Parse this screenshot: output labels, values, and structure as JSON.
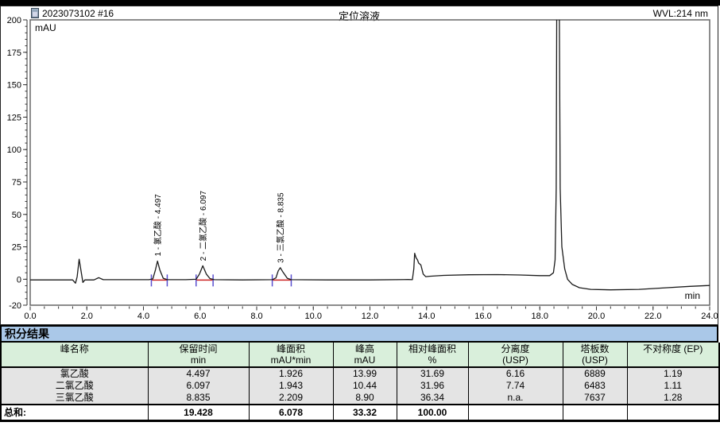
{
  "chart_header": {
    "sample": "2023073102 #16",
    "title": "定位溶液",
    "wavelength": "WVL:214 nm"
  },
  "chart_data": {
    "type": "line",
    "title": "定位溶液",
    "xlabel": "min",
    "ylabel": "mAU",
    "xlim": [
      0,
      24
    ],
    "ylim": [
      -20,
      200
    ],
    "x_major_step": 2,
    "x_minor_step": 0.5,
    "y_major_labels": [
      -20,
      0,
      25,
      50,
      75,
      100,
      125,
      150,
      175,
      200
    ],
    "y_minor_step": 5,
    "grid": false,
    "peaks": [
      {
        "number": 1,
        "name": "氯乙酸",
        "retention_min": 4.497,
        "label": "1 - 氯乙酸 - 4.497",
        "start": 4.28,
        "end": 4.84,
        "height_mAU": 13.99
      },
      {
        "number": 2,
        "name": "二氯乙酸",
        "retention_min": 6.097,
        "label": "2 - 二氯乙酸 - 6.097",
        "start": 5.86,
        "end": 6.46,
        "height_mAU": 10.44
      },
      {
        "number": 3,
        "name": "三氯乙酸",
        "retention_min": 8.835,
        "label": "3 - 三氯乙酸 - 8.835",
        "start": 8.55,
        "end": 9.22,
        "height_mAU": 8.9
      }
    ],
    "unlabeled_features": [
      {
        "retention_min": 1.75,
        "height_mAU": 15.5
      },
      {
        "retention_min": 13.58,
        "height_mAU": 20
      },
      {
        "retention_min": 18.64,
        "height_mAU": 300,
        "note": "clipped at top of scale"
      }
    ],
    "curve": [
      [
        0,
        -0.5
      ],
      [
        1.5,
        -0.5
      ],
      [
        1.6,
        -3
      ],
      [
        1.66,
        2
      ],
      [
        1.73,
        15.5
      ],
      [
        1.8,
        6
      ],
      [
        1.86,
        -2.5
      ],
      [
        1.93,
        -0.5
      ],
      [
        2.25,
        -0.5
      ],
      [
        2.42,
        1.2
      ],
      [
        2.58,
        -0.3
      ],
      [
        3.0,
        -0.3
      ],
      [
        4.2,
        -0.3
      ],
      [
        4.33,
        0.3
      ],
      [
        4.42,
        7
      ],
      [
        4.497,
        14
      ],
      [
        4.58,
        7
      ],
      [
        4.7,
        0.8
      ],
      [
        4.84,
        -0.3
      ],
      [
        5.5,
        -0.3
      ],
      [
        5.86,
        0
      ],
      [
        5.98,
        4
      ],
      [
        6.097,
        10.4
      ],
      [
        6.22,
        4
      ],
      [
        6.35,
        0.5
      ],
      [
        6.5,
        -0.3
      ],
      [
        7.5,
        -0.5
      ],
      [
        8.55,
        -0.3
      ],
      [
        8.68,
        1
      ],
      [
        8.76,
        6.5
      ],
      [
        8.835,
        8.9
      ],
      [
        8.93,
        5.5
      ],
      [
        9.08,
        0.8
      ],
      [
        9.22,
        -0.3
      ],
      [
        10.5,
        -0.5
      ],
      [
        12,
        -0.5
      ],
      [
        13.35,
        -0.2
      ],
      [
        13.5,
        -0.3
      ],
      [
        13.55,
        8
      ],
      [
        13.58,
        20
      ],
      [
        13.63,
        16.5
      ],
      [
        13.68,
        15
      ],
      [
        13.72,
        12.5
      ],
      [
        13.8,
        11
      ],
      [
        13.88,
        4
      ],
      [
        13.97,
        2
      ],
      [
        14.1,
        2.3
      ],
      [
        14.6,
        3
      ],
      [
        15.5,
        3.5
      ],
      [
        16.5,
        3.6
      ],
      [
        17.3,
        3.3
      ],
      [
        18.0,
        2.8
      ],
      [
        18.35,
        2.8
      ],
      [
        18.48,
        5
      ],
      [
        18.54,
        15
      ],
      [
        18.58,
        70
      ],
      [
        18.61,
        300
      ],
      [
        18.67,
        300
      ],
      [
        18.72,
        70
      ],
      [
        18.78,
        25
      ],
      [
        18.88,
        8
      ],
      [
        18.98,
        0
      ],
      [
        19.15,
        -4
      ],
      [
        19.4,
        -6.5
      ],
      [
        19.8,
        -7.8
      ],
      [
        20.5,
        -8.2
      ],
      [
        21.5,
        -7.8
      ],
      [
        22.5,
        -6.5
      ],
      [
        23.3,
        -5.5
      ],
      [
        24,
        -4.8
      ]
    ],
    "colors": {
      "trace": "#1a1a1a",
      "baseline_marker": "#cc2222",
      "peak_marker": "#5a4fcf",
      "plot_border": "#666666",
      "axis": "#333333"
    }
  },
  "results_table": {
    "title": "积分结果",
    "columns": [
      {
        "label": "峰名称",
        "unit": ""
      },
      {
        "label": "保留时间",
        "unit": "min"
      },
      {
        "label": "峰面积",
        "unit": "mAU*min"
      },
      {
        "label": "峰高",
        "unit": "mAU"
      },
      {
        "label": "相对峰面积",
        "unit": "%"
      },
      {
        "label": "分离度",
        "unit": "(USP)"
      },
      {
        "label": "塔板数",
        "unit": "(USP)"
      },
      {
        "label": "不对称度 (EP)",
        "unit": ""
      }
    ],
    "rows": [
      {
        "name": "氯乙酸",
        "rt": "4.497",
        "area": "1.926",
        "height": "13.99",
        "rel_area": "31.69",
        "resolution": "6.16",
        "plates": "6889",
        "asymmetry": "1.19"
      },
      {
        "name": "二氯乙酸",
        "rt": "6.097",
        "area": "1.943",
        "height": "10.44",
        "rel_area": "31.96",
        "resolution": "7.74",
        "plates": "6483",
        "asymmetry": "1.11"
      },
      {
        "name": "三氯乙酸",
        "rt": "8.835",
        "area": "2.209",
        "height": "8.90",
        "rel_area": "36.34",
        "resolution": "n.a.",
        "plates": "7637",
        "asymmetry": "1.28"
      }
    ],
    "total": {
      "label": "总和:",
      "rt": "19.428",
      "area": "6.078",
      "height": "33.32",
      "rel_area": "100.00"
    }
  },
  "colors": {
    "title_bar_bg": "#aac8e8",
    "table_header_bg": "#d9efdb",
    "table_rows_bg": "#e4e4e4"
  }
}
